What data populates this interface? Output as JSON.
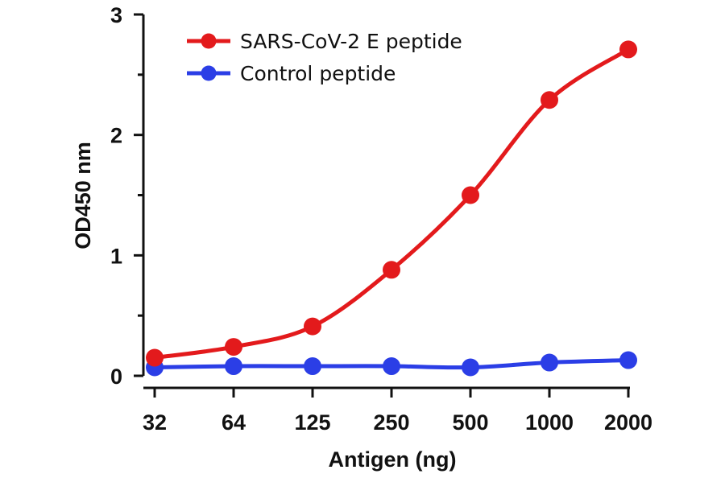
{
  "chart_data": {
    "type": "line",
    "x": [
      "32",
      "64",
      "125",
      "250",
      "500",
      "1000",
      "2000"
    ],
    "xlabel": "Antigen (ng)",
    "ylabel": "OD450 nm",
    "ylim": [
      0,
      3
    ],
    "yticks": [
      "0",
      "1",
      "2",
      "3"
    ],
    "x_scale": "log2 (categorical dilution series)",
    "grid": false,
    "legend_position": "top-left",
    "series": [
      {
        "name": "SARS-CoV-2 E peptide",
        "color": "#e31a1c",
        "values": [
          0.15,
          0.24,
          0.41,
          0.88,
          1.5,
          2.29,
          2.71
        ]
      },
      {
        "name": "Control peptide",
        "color": "#2b3ee6",
        "values": [
          0.07,
          0.08,
          0.08,
          0.08,
          0.07,
          0.11,
          0.13
        ]
      }
    ]
  }
}
